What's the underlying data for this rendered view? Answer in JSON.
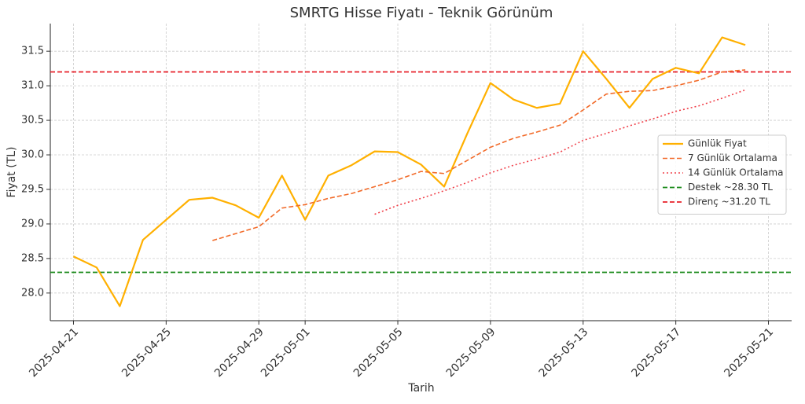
{
  "chart_data": {
    "type": "line",
    "title": "SMRTG Hisse Fiyatı - Teknik Görünüm",
    "x_label": "Tarih",
    "y_label": "Fiyat (TL)",
    "x": [
      "2025-04-21",
      "2025-04-22",
      "2025-04-23",
      "2025-04-24",
      "2025-04-26",
      "2025-04-27",
      "2025-04-28",
      "2025-04-29",
      "2025-04-30",
      "2025-05-01",
      "2025-05-02",
      "2025-05-03",
      "2025-05-04",
      "2025-05-05",
      "2025-05-06",
      "2025-05-07",
      "2025-05-08",
      "2025-05-09",
      "2025-05-10",
      "2025-05-11",
      "2025-05-12",
      "2025-05-13",
      "2025-05-14",
      "2025-05-15",
      "2025-05-16",
      "2025-05-17",
      "2025-05-18",
      "2025-05-19",
      "2025-05-20"
    ],
    "series": [
      {
        "name": "Günlük Fiyat",
        "color": "#ffb000",
        "style": "solid",
        "width": 2.2,
        "values": [
          28.53,
          28.37,
          27.81,
          28.77,
          29.35,
          29.38,
          29.27,
          29.09,
          29.7,
          29.06,
          29.7,
          29.85,
          30.05,
          30.04,
          29.86,
          29.54,
          30.31,
          31.04,
          30.8,
          30.68,
          30.74,
          31.5,
          31.1,
          30.68,
          31.1,
          31.26,
          31.18,
          31.7,
          31.59
        ]
      },
      {
        "name": "7 Günlük Ortalama",
        "color": "#f26b2a",
        "style": "dashed",
        "width": 1.6,
        "values": [
          null,
          null,
          null,
          null,
          null,
          28.76,
          28.86,
          28.96,
          29.23,
          29.28,
          29.37,
          29.44,
          29.54,
          29.64,
          29.76,
          29.73,
          29.92,
          30.11,
          30.24,
          30.33,
          30.43,
          30.65,
          30.88,
          30.92,
          30.93,
          31.0,
          31.08,
          31.2,
          31.23
        ]
      },
      {
        "name": "14 Günlük Ortalama",
        "color": "#f0404a",
        "style": "dotted",
        "width": 1.6,
        "values": [
          null,
          null,
          null,
          null,
          null,
          null,
          null,
          null,
          null,
          null,
          null,
          null,
          29.14,
          29.27,
          29.37,
          29.48,
          29.6,
          29.74,
          29.85,
          29.94,
          30.04,
          30.21,
          30.31,
          30.42,
          30.52,
          30.63,
          30.71,
          30.82,
          30.94
        ]
      }
    ],
    "hlines": [
      {
        "name": "Destek ~28.30 TL",
        "value": 28.3,
        "color": "#1a8a1a"
      },
      {
        "name": "Direnç ~31.20 TL",
        "value": 31.2,
        "color": "#e8202a"
      }
    ],
    "xlim": [
      "2025-04-20",
      "2025-05-22"
    ],
    "xticks": [
      "2025-04-21",
      "2025-04-25",
      "2025-04-29",
      "2025-05-01",
      "2025-05-05",
      "2025-05-09",
      "2025-05-13",
      "2025-05-17",
      "2025-05-21"
    ],
    "ylim": [
      27.6,
      31.9
    ],
    "yticks": [
      {
        "value": 28,
        "label": "28.0"
      },
      28.5,
      {
        "value": 29,
        "label": "29.0"
      },
      29.5,
      {
        "value": 30,
        "label": "30.0"
      },
      30.5,
      {
        "value": 31,
        "label": "31.0"
      },
      31.5
    ],
    "grid": true,
    "legend": "right"
  }
}
